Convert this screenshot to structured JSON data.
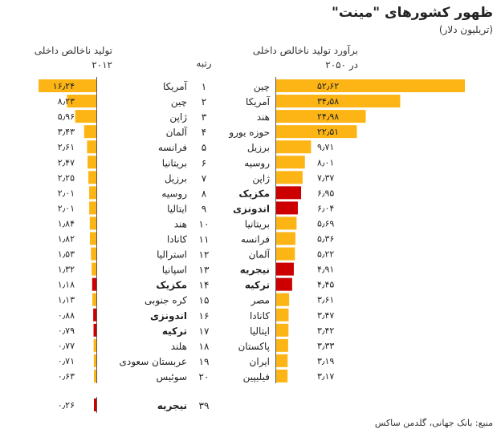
{
  "title": "ظهور کشورهای \"مینت\"",
  "subtitle": "(تریلیون دلار)",
  "header_right": "برآورد تولید ناخالص داخلی در ۲۰۵۰",
  "header_rank": "رتبه",
  "header_left": "تولید ناخالص داخلی ۲۰۱۲",
  "source": "منبع: بانک جهانی، گلدمن ساکس",
  "colors": {
    "normal": "#FDB515",
    "mint": "#CC0000",
    "axis": "#555555",
    "text": "#222222"
  },
  "chart_data": [
    {
      "type": "bar",
      "title": "برآورد تولید ناخالص داخلی در ۲۰۵۰",
      "orientation": "horizontal",
      "xlim": [
        0,
        52.62
      ],
      "rows": [
        {
          "rank": "۱",
          "country": "چین",
          "value": 52.62,
          "label": "۵۲٫۶۲",
          "mint": false
        },
        {
          "rank": "۲",
          "country": "آمریکا",
          "value": 34.58,
          "label": "۳۴٫۵۸",
          "mint": false
        },
        {
          "rank": "۳",
          "country": "هند",
          "value": 24.98,
          "label": "۲۴٫۹۸",
          "mint": false
        },
        {
          "rank": "۴",
          "country": "حوزه یورو",
          "value": 22.51,
          "label": "۲۲٫۵۱",
          "mint": false
        },
        {
          "rank": "۵",
          "country": "برزیل",
          "value": 9.71,
          "label": "۹٫۷۱",
          "mint": false
        },
        {
          "rank": "۶",
          "country": "روسیه",
          "value": 8.01,
          "label": "۸٫۰۱",
          "mint": false
        },
        {
          "rank": "۷",
          "country": "ژاپن",
          "value": 7.37,
          "label": "۷٫۳۷",
          "mint": false
        },
        {
          "rank": "۸",
          "country": "مکزیک",
          "value": 6.95,
          "label": "۶٫۹۵",
          "mint": true
        },
        {
          "rank": "۹",
          "country": "اندونزی",
          "value": 6.04,
          "label": "۶٫۰۴",
          "mint": true
        },
        {
          "rank": "۱۰",
          "country": "بریتانیا",
          "value": 5.69,
          "label": "۵٫۶۹",
          "mint": false
        },
        {
          "rank": "۱۱",
          "country": "فرانسه",
          "value": 5.36,
          "label": "۵٫۳۶",
          "mint": false
        },
        {
          "rank": "۱۲",
          "country": "آلمان",
          "value": 5.22,
          "label": "۵٫۲۲",
          "mint": false
        },
        {
          "rank": "۱۳",
          "country": "نیجریه",
          "value": 4.91,
          "label": "۴٫۹۱",
          "mint": true
        },
        {
          "rank": "۱۴",
          "country": "ترکیه",
          "value": 4.45,
          "label": "۴٫۴۵",
          "mint": true
        },
        {
          "rank": "۱۵",
          "country": "مصر",
          "value": 3.61,
          "label": "۳٫۶۱",
          "mint": false
        },
        {
          "rank": "۱۶",
          "country": "کانادا",
          "value": 3.47,
          "label": "۳٫۴۷",
          "mint": false
        },
        {
          "rank": "۱۷",
          "country": "ایتالیا",
          "value": 3.42,
          "label": "۳٫۴۲",
          "mint": false
        },
        {
          "rank": "۱۸",
          "country": "پاکستان",
          "value": 3.33,
          "label": "۳٫۳۳",
          "mint": false
        },
        {
          "rank": "۱۹",
          "country": "ایران",
          "value": 3.19,
          "label": "۳٫۱۹",
          "mint": false
        },
        {
          "rank": "۲۰",
          "country": "فیلیپین",
          "value": 3.17,
          "label": "۳٫۱۷",
          "mint": false
        }
      ]
    },
    {
      "type": "bar",
      "title": "تولید ناخالص داخلی ۲۰۱۲",
      "orientation": "horizontal",
      "xlim": [
        0,
        16.24
      ],
      "rows": [
        {
          "rank": "۱",
          "country": "آمریکا",
          "value": 16.24,
          "label": "۱۶٫۲۴",
          "mint": false
        },
        {
          "rank": "۲",
          "country": "چین",
          "value": 8.23,
          "label": "۸٫۲۳",
          "mint": false
        },
        {
          "rank": "۳",
          "country": "ژاپن",
          "value": 5.96,
          "label": "۵٫۹۶",
          "mint": false
        },
        {
          "rank": "۴",
          "country": "آلمان",
          "value": 3.43,
          "label": "۳٫۴۳",
          "mint": false
        },
        {
          "rank": "۵",
          "country": "فرانسه",
          "value": 2.61,
          "label": "۲٫۶۱",
          "mint": false
        },
        {
          "rank": "۶",
          "country": "بریتانیا",
          "value": 2.47,
          "label": "۲٫۴۷",
          "mint": false
        },
        {
          "rank": "۷",
          "country": "برزیل",
          "value": 2.25,
          "label": "۲٫۲۵",
          "mint": false
        },
        {
          "rank": "۸",
          "country": "روسیه",
          "value": 2.01,
          "label": "۲٫۰۱",
          "mint": false
        },
        {
          "rank": "۹",
          "country": "ایتالیا",
          "value": 2.01,
          "label": "۲٫۰۱",
          "mint": false
        },
        {
          "rank": "۱۰",
          "country": "هند",
          "value": 1.84,
          "label": "۱٫۸۴",
          "mint": false
        },
        {
          "rank": "۱۱",
          "country": "کانادا",
          "value": 1.82,
          "label": "۱٫۸۲",
          "mint": false
        },
        {
          "rank": "۱۲",
          "country": "استرالیا",
          "value": 1.53,
          "label": "۱٫۵۳",
          "mint": false
        },
        {
          "rank": "۱۳",
          "country": "اسپانیا",
          "value": 1.32,
          "label": "۱٫۳۲",
          "mint": false
        },
        {
          "rank": "۱۴",
          "country": "مکزیک",
          "value": 1.18,
          "label": "۱٫۱۸",
          "mint": true
        },
        {
          "rank": "۱۵",
          "country": "کره جنوبی",
          "value": 1.13,
          "label": "۱٫۱۳",
          "mint": false
        },
        {
          "rank": "۱۶",
          "country": "اندونزی",
          "value": 0.88,
          "label": "۰٫۸۸",
          "mint": true
        },
        {
          "rank": "۱۷",
          "country": "ترکیه",
          "value": 0.79,
          "label": "۰٫۷۹",
          "mint": true
        },
        {
          "rank": "۱۸",
          "country": "هلند",
          "value": 0.77,
          "label": "۰٫۷۷",
          "mint": false
        },
        {
          "rank": "۱۹",
          "country": "عربستان سعودی",
          "value": 0.71,
          "label": "۰٫۷۱",
          "mint": false
        },
        {
          "rank": "۲۰",
          "country": "سوئیس",
          "value": 0.63,
          "label": "۰٫۶۳",
          "mint": false
        },
        {
          "rank": "۳۹",
          "country": "نیجریه",
          "value": 0.26,
          "label": "۰٫۲۶",
          "mint": true
        }
      ]
    }
  ]
}
